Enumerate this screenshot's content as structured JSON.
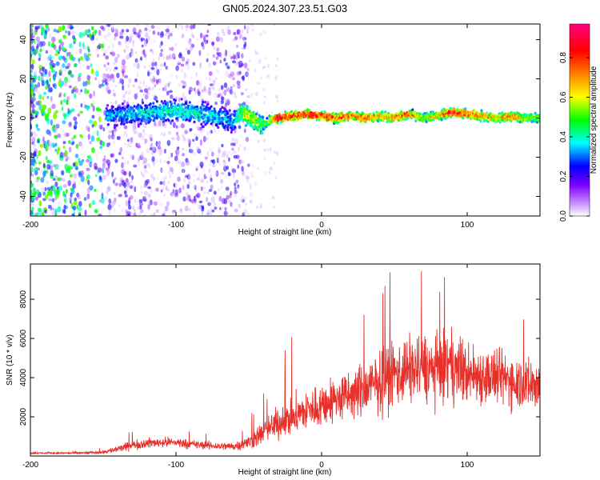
{
  "title": "GN05.2024.307.23.51.G03",
  "chart_data": [
    {
      "type": "heatmap",
      "xlabel": "Height of straight line (km)",
      "ylabel": "Frequency (Hz)",
      "xlim": [
        -200,
        150
      ],
      "ylim": [
        -50,
        48
      ],
      "xticks": [
        -200,
        -100,
        0,
        100
      ],
      "yticks": [
        -40,
        -20,
        0,
        20,
        40
      ],
      "colorbar": {
        "label": "Normalized spectral amplitude",
        "range": [
          0,
          0.97
        ],
        "ticks": [
          "0.0",
          "0.2",
          "0.4",
          "0.6",
          "0.8"
        ],
        "colors": [
          "#ffffff",
          "#cc99ff",
          "#7f00ff",
          "#0000ff",
          "#00ffff",
          "#00ff00",
          "#ffff00",
          "#ff7f00",
          "#ff0000",
          "#ff0080"
        ]
      },
      "ridge": {
        "x": [
          -145,
          -130,
          -115,
          -100,
          -90,
          -80,
          -70,
          -60,
          -55,
          -50,
          -45,
          -40,
          -35,
          -30,
          -20,
          -10,
          0,
          10,
          20,
          30,
          40,
          50,
          60,
          70,
          80,
          90,
          100,
          110,
          120,
          130,
          140,
          150
        ],
        "freq_hz": [
          1,
          2,
          3,
          4,
          3,
          2,
          0,
          -2,
          3,
          1,
          -2,
          -4,
          -1,
          0,
          1,
          2,
          1,
          0,
          1,
          0,
          1,
          0,
          2,
          0,
          1,
          3,
          2,
          1,
          0,
          1,
          0,
          0
        ],
        "peak_amplitude": [
          0.35,
          0.38,
          0.4,
          0.42,
          0.42,
          0.4,
          0.38,
          0.35,
          0.55,
          0.6,
          0.58,
          0.5,
          0.6,
          0.9,
          0.85,
          0.9,
          0.85,
          0.8,
          0.75,
          0.8,
          0.7,
          0.75,
          0.8,
          0.6,
          0.7,
          0.85,
          0.8,
          0.75,
          0.65,
          0.8,
          0.6,
          0.55
        ]
      }
    },
    {
      "type": "line",
      "xlabel": "Height of straight line (km)",
      "ylabel": "SNR (10 * v/v)",
      "xlim": [
        -200,
        150
      ],
      "ylim": [
        0,
        9800
      ],
      "xticks": [
        -200,
        -100,
        0,
        100
      ],
      "yticks": [
        2000,
        4000,
        6000,
        8000
      ],
      "series": [
        {
          "color": "#e8302a",
          "x": [
            -200,
            -180,
            -160,
            -150,
            -140,
            -130,
            -120,
            -110,
            -100,
            -90,
            -80,
            -70,
            -60,
            -50,
            -40,
            -30,
            -20,
            -10,
            0,
            10,
            20,
            30,
            40,
            50,
            60,
            70,
            80,
            90,
            100,
            110,
            120,
            130,
            140,
            150
          ],
          "y": [
            150,
            150,
            160,
            200,
            350,
            550,
            650,
            700,
            700,
            600,
            550,
            500,
            500,
            700,
            1200,
            1700,
            2000,
            2300,
            2600,
            2900,
            3100,
            3400,
            3800,
            4200,
            4400,
            4500,
            4400,
            4600,
            4200,
            4100,
            4000,
            3900,
            3700,
            3600
          ],
          "spread": [
            60,
            60,
            80,
            120,
            250,
            300,
            330,
            330,
            330,
            300,
            280,
            260,
            300,
            500,
            800,
            1100,
            1300,
            1400,
            1500,
            1600,
            1700,
            1900,
            2100,
            2200,
            2300,
            2300,
            2200,
            2400,
            2100,
            2000,
            1900,
            1900,
            1800,
            1800
          ]
        }
      ]
    }
  ]
}
